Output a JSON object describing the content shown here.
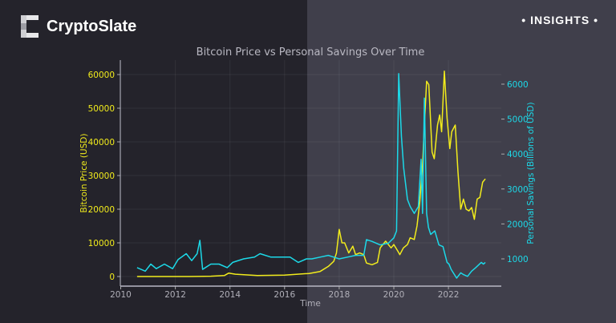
{
  "brand": {
    "name": "CryptoSlate",
    "badge": "INSIGHTS"
  },
  "colors": {
    "bitcoin": "#f2ec1c",
    "savings": "#1cd9e8",
    "bg_left": "#24232b",
    "bg_right": "#403f4b"
  },
  "chart_data": {
    "type": "line",
    "title": "Bitcoin Price vs Personal Savings Over Time",
    "xlabel": "Time",
    "ylabel_left": "Bitcoin Price (USD)",
    "ylabel_right": "Personal Savings (Billions of USD)",
    "xlim": [
      2010,
      2024
    ],
    "ylim_left": [
      -3000,
      64000
    ],
    "ylim_right": [
      300,
      6500
    ],
    "x_ticks": [
      "2010",
      "2012",
      "2014",
      "2016",
      "2018",
      "2020",
      "2022"
    ],
    "y_ticks_left": [
      "0",
      "10000",
      "20000",
      "30000",
      "40000",
      "50000",
      "60000"
    ],
    "y_ticks_right": [
      "1000",
      "2000",
      "3000",
      "4000",
      "5000",
      "6000"
    ],
    "grid": true,
    "series": [
      {
        "axis": "left",
        "x": [
          2010.6,
          2011.5,
          2012.5,
          2013.3,
          2013.8,
          2013.95,
          2014.2,
          2015.0,
          2016.0,
          2016.9,
          2017.3,
          2017.6,
          2017.8,
          2017.9,
          2018.0,
          2018.1,
          2018.2,
          2018.35,
          2018.5,
          2018.6,
          2018.75,
          2018.9,
          2019.0,
          2019.2,
          2019.4,
          2019.5,
          2019.7,
          2019.8,
          2019.9,
          2020.0,
          2020.15,
          2020.22,
          2020.35,
          2020.5,
          2020.6,
          2020.75,
          2020.85,
          2020.95,
          2021.05,
          2021.12,
          2021.2,
          2021.28,
          2021.4,
          2021.48,
          2021.6,
          2021.68,
          2021.75,
          2021.85,
          2021.95,
          2022.05,
          2022.12,
          2022.25,
          2022.35,
          2022.45,
          2022.55,
          2022.65,
          2022.75,
          2022.85,
          2022.95,
          2023.05,
          2023.15,
          2023.25,
          2023.35
        ],
        "y": [
          0,
          10,
          10,
          100,
          300,
          1000,
          700,
          300,
          400,
          900,
          1500,
          3000,
          4500,
          7000,
          14000,
          10000,
          10000,
          7000,
          9000,
          6500,
          7000,
          6500,
          4000,
          3500,
          4200,
          8500,
          10500,
          9500,
          8500,
          9500,
          7500,
          6500,
          8500,
          9500,
          11500,
          11000,
          15000,
          22000,
          33000,
          45000,
          58000,
          57000,
          37000,
          35000,
          45000,
          48000,
          43000,
          61000,
          47000,
          38000,
          43000,
          45000,
          31000,
          20000,
          23000,
          20000,
          19500,
          20500,
          17000,
          23000,
          23500,
          28000,
          29000
        ]
      },
      {
        "axis": "right",
        "x": [
          2010.6,
          2010.9,
          2011.1,
          2011.3,
          2011.6,
          2011.9,
          2012.1,
          2012.4,
          2012.6,
          2012.8,
          2012.9,
          2013.0,
          2013.3,
          2013.6,
          2013.9,
          2014.1,
          2014.5,
          2014.9,
          2015.1,
          2015.5,
          2015.9,
          2016.2,
          2016.5,
          2016.8,
          2017.0,
          2017.3,
          2017.6,
          2017.8,
          2018.0,
          2018.3,
          2018.6,
          2018.9,
          2019.0,
          2019.2,
          2019.5,
          2019.8,
          2020.0,
          2020.1,
          2020.18,
          2020.28,
          2020.36,
          2020.5,
          2020.6,
          2020.75,
          2020.9,
          2021.0,
          2021.05,
          2021.12,
          2021.2,
          2021.27,
          2021.35,
          2021.5,
          2021.65,
          2021.8,
          2021.95,
          2022.02,
          2022.1,
          2022.3,
          2022.45,
          2022.55,
          2022.7,
          2022.85,
          2023.0,
          2023.2,
          2023.28,
          2023.35
        ],
        "y": [
          750,
          650,
          850,
          720,
          850,
          720,
          980,
          1150,
          950,
          1150,
          1530,
          700,
          850,
          850,
          750,
          900,
          1000,
          1050,
          1150,
          1050,
          1050,
          1050,
          900,
          1000,
          1000,
          1050,
          1100,
          1050,
          1000,
          1050,
          1100,
          1100,
          1550,
          1500,
          1400,
          1450,
          1600,
          1800,
          6300,
          4500,
          3600,
          2700,
          2500,
          2300,
          2500,
          3850,
          2300,
          5600,
          2300,
          1900,
          1700,
          1800,
          1400,
          1350,
          900,
          850,
          700,
          450,
          600,
          550,
          500,
          650,
          750,
          900,
          850,
          900
        ]
      }
    ]
  }
}
